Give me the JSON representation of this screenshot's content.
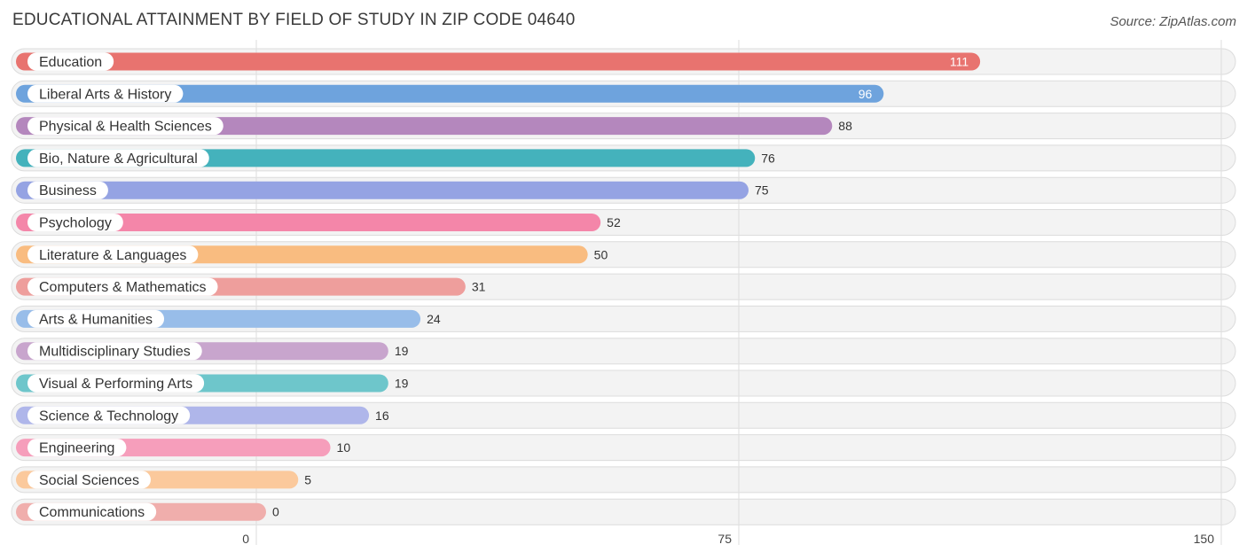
{
  "title": "EDUCATIONAL ATTAINMENT BY FIELD OF STUDY IN ZIP CODE 04640",
  "source": "Source: ZipAtlas.com",
  "chart_data": {
    "type": "bar",
    "orientation": "horizontal",
    "title": "EDUCATIONAL ATTAINMENT BY FIELD OF STUDY IN ZIP CODE 04640",
    "categories": [
      "Education",
      "Liberal Arts & History",
      "Physical & Health Sciences",
      "Bio, Nature & Agricultural",
      "Business",
      "Psychology",
      "Literature & Languages",
      "Computers & Mathematics",
      "Arts & Humanities",
      "Multidisciplinary Studies",
      "Visual & Performing Arts",
      "Science & Technology",
      "Engineering",
      "Social Sciences",
      "Communications"
    ],
    "values": [
      111,
      96,
      88,
      76,
      75,
      52,
      50,
      31,
      24,
      19,
      19,
      16,
      10,
      5,
      0
    ],
    "value_labels": [
      "111",
      "96",
      "88",
      "76",
      "75",
      "52",
      "50",
      "31",
      "24",
      "19",
      "19",
      "16",
      "10",
      "5",
      "0"
    ],
    "colors": [
      "#e8736f",
      "#6ea3dd",
      "#b487bd",
      "#44b2bc",
      "#95a3e3",
      "#f486a9",
      "#f9bc80",
      "#ee9e9c",
      "#98bde9",
      "#c8a5cd",
      "#6ec6cb",
      "#afb6ea",
      "#f69ebb",
      "#fbc99c",
      "#f0aeac"
    ],
    "xlim": [
      0,
      150
    ],
    "ticks": [
      0,
      75,
      150
    ],
    "tick_labels": [
      "0",
      "75",
      "150"
    ],
    "grid": true
  }
}
